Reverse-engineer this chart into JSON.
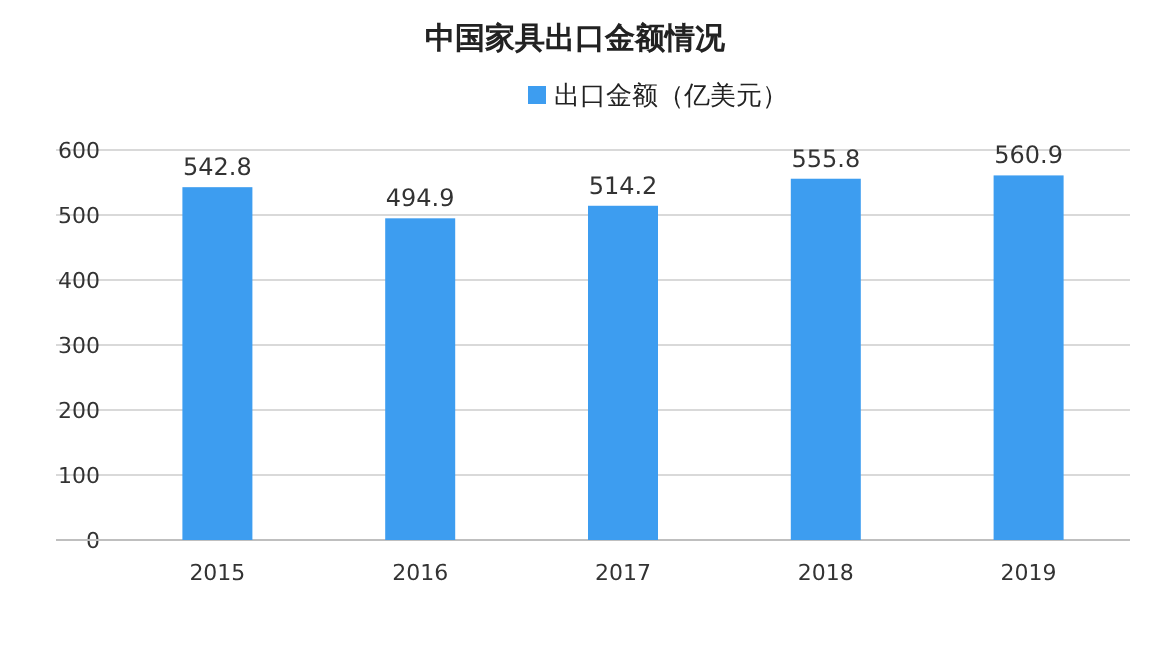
{
  "chart_data": {
    "type": "bar",
    "title": "中国家具出口金额情况",
    "categories": [
      "2015",
      "2016",
      "2017",
      "2018",
      "2019"
    ],
    "series": [
      {
        "name": "出口金额（亿美元）",
        "color": "#3d9df0",
        "values": [
          542.8,
          494.9,
          514.2,
          555.8,
          560.9
        ]
      }
    ],
    "ylim": [
      0,
      600
    ],
    "yticks": [
      0,
      100,
      200,
      300,
      400,
      500,
      600
    ],
    "grid": "y",
    "legend": "top",
    "data_labels": true
  }
}
